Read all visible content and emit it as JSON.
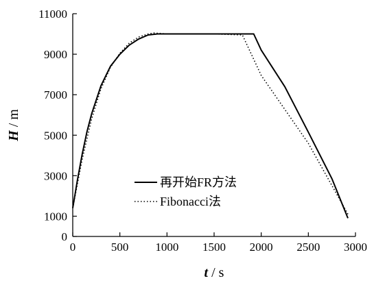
{
  "chart_data": {
    "type": "line",
    "xlabel": {
      "var": "t",
      "sep": " / ",
      "unit": "s"
    },
    "ylabel": {
      "var": "H",
      "sep": " / ",
      "unit": "m"
    },
    "xlim": [
      0,
      3000
    ],
    "ylim": [
      0,
      11000
    ],
    "xticks": [
      0,
      500,
      1000,
      1500,
      2000,
      2500,
      3000
    ],
    "yticks": [
      0,
      1000,
      3000,
      5000,
      7000,
      9000,
      11000
    ],
    "grid": false,
    "legend_position": "center-left",
    "series": [
      {
        "name": "再开始FR方法",
        "style": "solid",
        "color": "#000000",
        "x": [
          0,
          50,
          100,
          150,
          200,
          300,
          400,
          500,
          600,
          700,
          800,
          900,
          1000,
          1500,
          1920,
          2000,
          2250,
          2500,
          2750,
          2920
        ],
        "y": [
          1400,
          2800,
          4050,
          5150,
          6050,
          7450,
          8400,
          9000,
          9450,
          9750,
          9950,
          10000,
          10000,
          10000,
          10000,
          9200,
          7400,
          5150,
          2850,
          900
        ]
      },
      {
        "name": "Fibonacci法",
        "style": "dotted",
        "color": "#000000",
        "x": [
          0,
          100,
          200,
          300,
          400,
          500,
          600,
          700,
          800,
          860,
          1000,
          1500,
          1800,
          2000,
          2500,
          2920
        ],
        "y": [
          1400,
          3800,
          5800,
          7300,
          8350,
          9050,
          9550,
          9850,
          10000,
          10050,
          10000,
          10000,
          9950,
          7950,
          4600,
          1100
        ]
      }
    ]
  }
}
